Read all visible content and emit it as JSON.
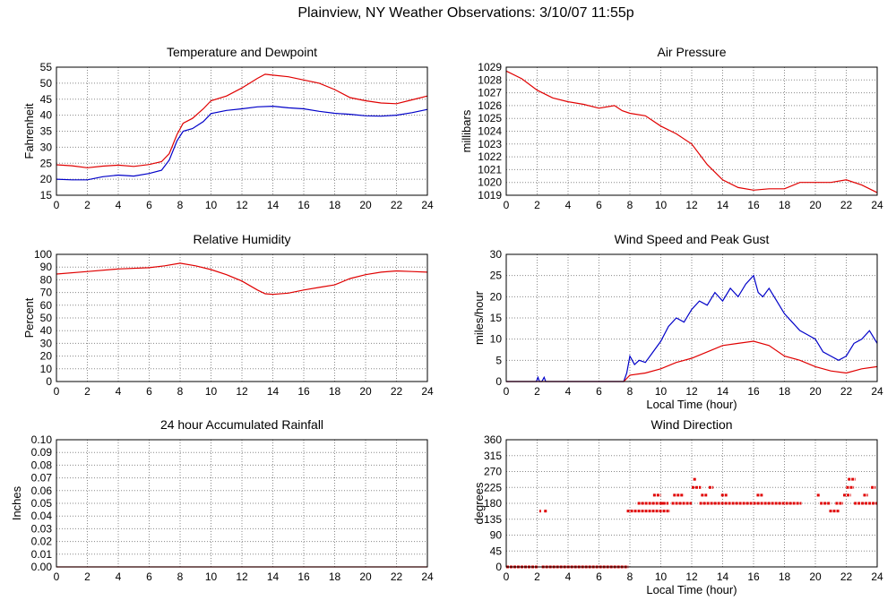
{
  "page": {
    "title": "Plainview, NY Weather Observations: 3/10/07 11:55p"
  },
  "colors": {
    "red": "#e00000",
    "blue": "#0000c8",
    "grid": "#888888"
  },
  "chart_data": [
    {
      "id": "temp",
      "type": "line",
      "title": "Temperature and Dewpoint",
      "xlabel": "",
      "ylabel": "Fahrenheit",
      "xlim": [
        0,
        24
      ],
      "ylim": [
        15,
        55
      ],
      "xticks": [
        0,
        2,
        4,
        6,
        8,
        10,
        12,
        14,
        16,
        18,
        20,
        22,
        24
      ],
      "yticks": [
        15,
        20,
        25,
        30,
        35,
        40,
        45,
        50,
        55
      ],
      "grid": true,
      "series": [
        {
          "color": "#e00000",
          "points": [
            [
              0,
              24.5
            ],
            [
              1,
              24.2
            ],
            [
              2,
              23.6
            ],
            [
              3,
              24.1
            ],
            [
              4,
              24.4
            ],
            [
              5,
              24
            ],
            [
              6,
              24.6
            ],
            [
              6.8,
              25.5
            ],
            [
              7.3,
              28
            ],
            [
              7.8,
              34
            ],
            [
              8.2,
              37.5
            ],
            [
              8.8,
              39
            ],
            [
              9.5,
              42
            ],
            [
              10,
              44.5
            ],
            [
              11,
              46
            ],
            [
              12,
              48.5
            ],
            [
              13,
              51.5
            ],
            [
              13.5,
              52.8
            ],
            [
              14,
              52.5
            ],
            [
              15,
              52
            ],
            [
              16,
              51
            ],
            [
              17,
              50
            ],
            [
              18,
              48
            ],
            [
              19,
              45.5
            ],
            [
              20,
              44.5
            ],
            [
              21,
              43.8
            ],
            [
              22,
              43.6
            ],
            [
              23,
              44.8
            ],
            [
              24,
              46
            ]
          ]
        },
        {
          "color": "#0000c8",
          "points": [
            [
              0,
              20
            ],
            [
              1,
              19.8
            ],
            [
              2,
              19.8
            ],
            [
              3,
              20.8
            ],
            [
              4,
              21.3
            ],
            [
              5,
              21
            ],
            [
              6,
              21.8
            ],
            [
              6.8,
              22.8
            ],
            [
              7.3,
              26
            ],
            [
              7.8,
              32
            ],
            [
              8.2,
              35
            ],
            [
              8.8,
              35.8
            ],
            [
              9.5,
              38
            ],
            [
              10,
              40.5
            ],
            [
              11,
              41.5
            ],
            [
              12,
              42
            ],
            [
              13,
              42.6
            ],
            [
              14,
              42.8
            ],
            [
              15,
              42.3
            ],
            [
              16,
              42
            ],
            [
              17,
              41.2
            ],
            [
              18,
              40.6
            ],
            [
              19,
              40.3
            ],
            [
              20,
              39.8
            ],
            [
              21,
              39.7
            ],
            [
              22,
              40
            ],
            [
              23,
              40.8
            ],
            [
              24,
              41.8
            ]
          ]
        }
      ]
    },
    {
      "id": "pressure",
      "type": "line",
      "title": "Air Pressure",
      "xlabel": "",
      "ylabel": "millibars",
      "xlim": [
        0,
        24
      ],
      "ylim": [
        1019,
        1029
      ],
      "xticks": [
        0,
        2,
        4,
        6,
        8,
        10,
        12,
        14,
        16,
        18,
        20,
        22,
        24
      ],
      "yticks": [
        1019,
        1020,
        1021,
        1022,
        1023,
        1024,
        1025,
        1026,
        1027,
        1028,
        1029
      ],
      "grid": true,
      "series": [
        {
          "color": "#e00000",
          "points": [
            [
              0,
              1028.7
            ],
            [
              1,
              1028.1
            ],
            [
              2,
              1027.2
            ],
            [
              3,
              1026.6
            ],
            [
              4,
              1026.3
            ],
            [
              5,
              1026.1
            ],
            [
              6,
              1025.8
            ],
            [
              7,
              1026
            ],
            [
              7.5,
              1025.6
            ],
            [
              8,
              1025.4
            ],
            [
              9,
              1025.2
            ],
            [
              10,
              1024.4
            ],
            [
              11,
              1023.8
            ],
            [
              12,
              1023
            ],
            [
              13,
              1021.4
            ],
            [
              14,
              1020.2
            ],
            [
              15,
              1019.6
            ],
            [
              16,
              1019.4
            ],
            [
              17,
              1019.5
            ],
            [
              18,
              1019.5
            ],
            [
              19,
              1020
            ],
            [
              20,
              1020
            ],
            [
              21,
              1020
            ],
            [
              22,
              1020.2
            ],
            [
              23,
              1019.8
            ],
            [
              24,
              1019.2
            ]
          ]
        }
      ]
    },
    {
      "id": "humidity",
      "type": "line",
      "title": "Relative Humidity",
      "xlabel": "",
      "ylabel": "Percent",
      "xlim": [
        0,
        24
      ],
      "ylim": [
        0,
        100
      ],
      "xticks": [
        0,
        2,
        4,
        6,
        8,
        10,
        12,
        14,
        16,
        18,
        20,
        22,
        24
      ],
      "yticks": [
        0,
        10,
        20,
        30,
        40,
        50,
        60,
        70,
        80,
        90,
        100
      ],
      "grid": true,
      "series": [
        {
          "color": "#e00000",
          "points": [
            [
              0,
              84.5
            ],
            [
              2,
              86.5
            ],
            [
              4,
              88.5
            ],
            [
              6,
              89.5
            ],
            [
              7,
              91
            ],
            [
              8,
              93
            ],
            [
              9,
              91
            ],
            [
              10,
              88
            ],
            [
              11,
              84
            ],
            [
              12,
              79
            ],
            [
              13,
              72
            ],
            [
              13.5,
              69
            ],
            [
              14,
              68.5
            ],
            [
              15,
              69.5
            ],
            [
              16,
              72
            ],
            [
              17,
              74
            ],
            [
              18,
              76
            ],
            [
              19,
              81
            ],
            [
              20,
              84
            ],
            [
              21,
              86
            ],
            [
              22,
              87
            ],
            [
              23,
              86.5
            ],
            [
              24,
              86
            ]
          ]
        }
      ]
    },
    {
      "id": "wind",
      "type": "line",
      "title": "Wind Speed and Peak Gust",
      "xlabel": "Local Time (hour)",
      "ylabel": "miles/hour",
      "xlim": [
        0,
        24
      ],
      "ylim": [
        0,
        30
      ],
      "xticks": [
        0,
        2,
        4,
        6,
        8,
        10,
        12,
        14,
        16,
        18,
        20,
        22,
        24
      ],
      "yticks": [
        0,
        5,
        10,
        15,
        20,
        25,
        30
      ],
      "grid": true,
      "series": [
        {
          "color": "#0000c8",
          "points": [
            [
              0,
              0
            ],
            [
              1.95,
              0
            ],
            [
              2.05,
              1
            ],
            [
              2.15,
              0
            ],
            [
              2.3,
              0
            ],
            [
              2.45,
              1
            ],
            [
              2.55,
              0
            ],
            [
              7.6,
              0
            ],
            [
              7.8,
              2
            ],
            [
              8,
              6
            ],
            [
              8.3,
              4
            ],
            [
              8.6,
              5
            ],
            [
              9,
              4.5
            ],
            [
              9.5,
              7
            ],
            [
              10,
              9.5
            ],
            [
              10.5,
              13
            ],
            [
              11,
              15
            ],
            [
              11.5,
              14
            ],
            [
              12,
              17
            ],
            [
              12.5,
              19
            ],
            [
              13,
              18
            ],
            [
              13.5,
              21
            ],
            [
              14,
              19
            ],
            [
              14.5,
              22
            ],
            [
              15,
              20
            ],
            [
              15.5,
              23
            ],
            [
              16,
              25
            ],
            [
              16.3,
              21
            ],
            [
              16.6,
              20
            ],
            [
              17,
              22
            ],
            [
              17.5,
              19
            ],
            [
              18,
              16
            ],
            [
              18.5,
              14
            ],
            [
              19,
              12
            ],
            [
              19.5,
              11
            ],
            [
              20,
              10
            ],
            [
              20.5,
              7
            ],
            [
              21,
              6
            ],
            [
              21.5,
              5
            ],
            [
              22,
              6
            ],
            [
              22.5,
              9
            ],
            [
              23,
              10
            ],
            [
              23.5,
              12
            ],
            [
              24,
              9
            ]
          ]
        },
        {
          "color": "#e00000",
          "points": [
            [
              0,
              0
            ],
            [
              7.6,
              0
            ],
            [
              8,
              1.5
            ],
            [
              9,
              2
            ],
            [
              10,
              3
            ],
            [
              11,
              4.5
            ],
            [
              12,
              5.5
            ],
            [
              13,
              7
            ],
            [
              14,
              8.5
            ],
            [
              15,
              9
            ],
            [
              16,
              9.5
            ],
            [
              17,
              8.5
            ],
            [
              18,
              6
            ],
            [
              19,
              5
            ],
            [
              20,
              3.5
            ],
            [
              21,
              2.5
            ],
            [
              22,
              2
            ],
            [
              23,
              3
            ],
            [
              24,
              3.5
            ]
          ]
        }
      ]
    },
    {
      "id": "rain",
      "type": "line",
      "title": "24 hour Accumulated Rainfall",
      "xlabel": "",
      "ylabel": "Inches",
      "xlim": [
        0,
        24
      ],
      "ylim": [
        0,
        0.1
      ],
      "xticks": [
        0,
        2,
        4,
        6,
        8,
        10,
        12,
        14,
        16,
        18,
        20,
        22,
        24
      ],
      "yticks": [
        "0.00",
        "0.01",
        "0.02",
        "0.03",
        "0.04",
        "0.05",
        "0.06",
        "0.07",
        "0.08",
        "0.09",
        "0.10"
      ],
      "grid": true,
      "series": [
        {
          "color": "#e00000",
          "points": [
            [
              0,
              0
            ],
            [
              24,
              0
            ]
          ]
        }
      ]
    },
    {
      "id": "direction",
      "type": "scatter",
      "title": "Wind Direction",
      "xlabel": "Local Time (hour)",
      "ylabel": "degrees",
      "xlim": [
        0,
        24
      ],
      "ylim": [
        0,
        360
      ],
      "xticks": [
        0,
        2,
        4,
        6,
        8,
        10,
        12,
        14,
        16,
        18,
        20,
        22,
        24
      ],
      "yticks": [
        0,
        45,
        90,
        135,
        180,
        225,
        270,
        315,
        360
      ],
      "grid": true,
      "series": [
        {
          "color": "#e00000",
          "segments": [
            [
              0,
              2.1,
              0
            ],
            [
              2.3,
              7.9,
              0
            ],
            [
              2.15,
              2.25,
              158
            ],
            [
              2.45,
              2.65,
              158
            ],
            [
              7.8,
              10.6,
              158
            ],
            [
              8.5,
              10.5,
              180
            ],
            [
              9.5,
              10,
              203
            ],
            [
              10,
              10.3,
              180
            ],
            [
              10.7,
              12.0,
              180
            ],
            [
              10.8,
              11.5,
              203
            ],
            [
              12,
              12.6,
              225
            ],
            [
              12.1,
              12.3,
              248
            ],
            [
              12.6,
              13,
              203
            ],
            [
              13.1,
              13.4,
              225
            ],
            [
              12.5,
              19.1,
              180
            ],
            [
              13.9,
              14.3,
              203
            ],
            [
              16.2,
              16.6,
              203
            ],
            [
              20.3,
              21.0,
              180
            ],
            [
              20.9,
              21.6,
              158
            ],
            [
              21.3,
              21.8,
              180
            ],
            [
              21.8,
              22.3,
              203
            ],
            [
              22,
              22.5,
              225
            ],
            [
              22.1,
              22.6,
              248
            ],
            [
              22.5,
              24,
              180
            ],
            [
              23.1,
              23.4,
              203
            ],
            [
              23.6,
              23.9,
              225
            ],
            [
              20.1,
              20.3,
              203
            ]
          ]
        }
      ]
    }
  ]
}
